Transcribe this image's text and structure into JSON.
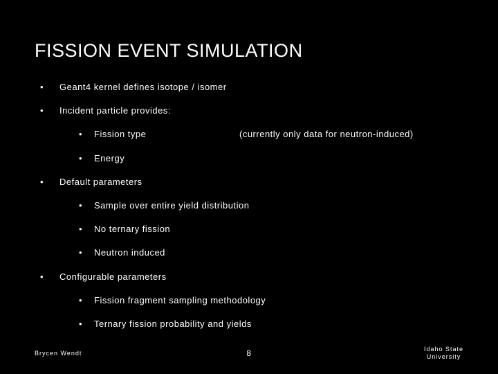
{
  "colors": {
    "background": "#000000",
    "text": "#ffffff"
  },
  "typography": {
    "title_fontsize": 27,
    "body_fontsize": 13,
    "footer_fontsize": 9,
    "pagenum_fontsize": 12,
    "title_letter_spacing": 0.5,
    "body_letter_spacing": 0.5,
    "footer_letter_spacing": 1
  },
  "title": "FISSION EVENT SIMULATION",
  "bullets": [
    {
      "text": "Geant4 kernel defines isotope / isomer"
    },
    {
      "text": "Incident particle provides:",
      "children": [
        {
          "text": "Fission type",
          "aside": "(currently only data for neutron-induced)"
        },
        {
          "text": "Energy"
        }
      ]
    },
    {
      "text": "Default parameters",
      "children": [
        {
          "text": "Sample over entire yield distribution"
        },
        {
          "text": "No ternary fission"
        },
        {
          "text": "Neutron induced"
        }
      ]
    },
    {
      "text": "Configurable parameters",
      "children": [
        {
          "text": "Fission fragment sampling methodology"
        },
        {
          "text": "Ternary fission probability and yields"
        }
      ]
    }
  ],
  "footer": {
    "author": "Brycen Wendt",
    "page_number": "8",
    "affiliation_line1": "Idaho State",
    "affiliation_line2": "University"
  }
}
